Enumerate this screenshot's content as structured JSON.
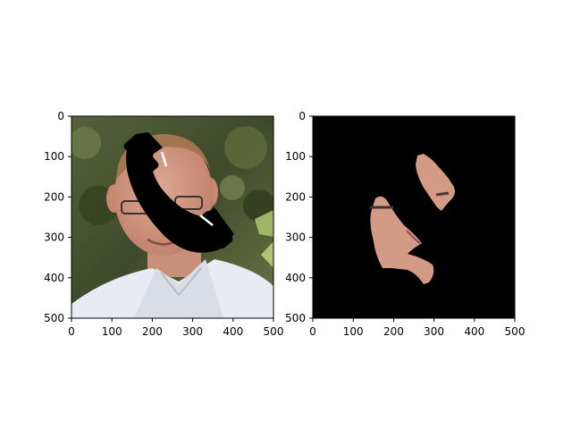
{
  "figure": {
    "panels": [
      {
        "id": "left",
        "content": "masked photo: man's face with a black telephone-handset occluder",
        "xticks": [
          "0",
          "100",
          "200",
          "300",
          "400",
          "500"
        ],
        "yticks": [
          "0",
          "100",
          "200",
          "300",
          "400",
          "500"
        ]
      },
      {
        "id": "right",
        "content": "segmented face skin regions on black background",
        "xticks": [
          "0",
          "100",
          "200",
          "300",
          "400",
          "500"
        ],
        "yticks": [
          "0",
          "100",
          "200",
          "300",
          "400",
          "500"
        ]
      }
    ],
    "colors": {
      "frame": "#000000",
      "mask_background": "#000000",
      "skin": "#d39a86",
      "foliage": "#4f5d33",
      "shirt": "#e6e8ef"
    }
  }
}
